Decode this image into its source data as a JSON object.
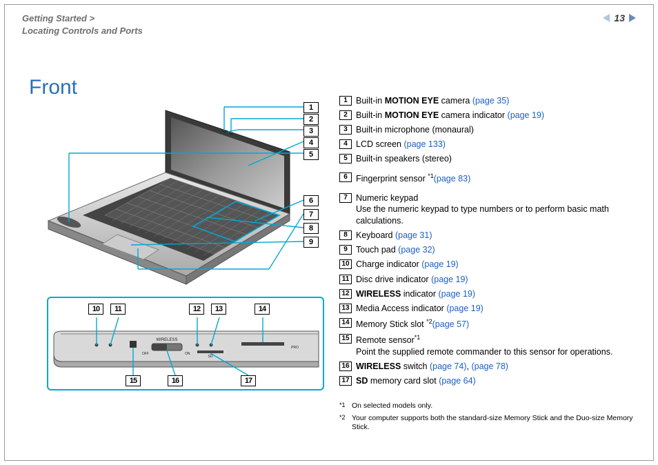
{
  "header": {
    "breadcrumb_line1": "Getting Started >",
    "breadcrumb_line2": "Locating Controls and Ports",
    "page_number": "13"
  },
  "title": "Front",
  "colors": {
    "accent": "#00a8d6",
    "link": "#1a5fc4",
    "title": "#2b6fb5",
    "breadcrumb": "#6e6e6e",
    "nav_left": "#b3c8dc",
    "nav_right": "#6b8db5"
  },
  "diagram": {
    "top_callouts": [
      "1",
      "2",
      "3",
      "4",
      "5"
    ],
    "mid_callouts": [
      "6",
      "7",
      "8",
      "9"
    ],
    "panel_top_callouts": [
      "10",
      "11",
      "12",
      "13",
      "14"
    ],
    "panel_bottom_callouts": [
      "15",
      "16",
      "17"
    ],
    "panel_labels": {
      "wireless": "WIRELESS",
      "off": "OFF",
      "on": "ON",
      "sd": "SD",
      "pro": "PRO"
    }
  },
  "legend": [
    {
      "num": "1",
      "pre": "Built-in ",
      "bold": "MOTION EYE",
      "post": " camera ",
      "link": "(page 35)"
    },
    {
      "num": "2",
      "pre": "Built-in ",
      "bold": "MOTION EYE",
      "post": " camera indicator ",
      "link": "(page 19)"
    },
    {
      "num": "3",
      "pre": "Built-in microphone (monaural)"
    },
    {
      "num": "4",
      "pre": "LCD screen ",
      "link": "(page 133)"
    },
    {
      "num": "5",
      "pre": "Built-in speakers (stereo)"
    },
    {
      "num": "6",
      "pre": "Fingerprint sensor",
      "sup": "*1",
      "post": " ",
      "link": "(page 83)"
    },
    {
      "num": "7",
      "pre": "Numeric keypad",
      "desc": "Use the numeric keypad to type numbers or to perform basic math calculations."
    },
    {
      "num": "8",
      "pre": "Keyboard ",
      "link": "(page 31)"
    },
    {
      "num": "9",
      "pre": "Touch pad ",
      "link": "(page 32)"
    },
    {
      "num": "10",
      "pre": "Charge indicator ",
      "link": "(page 19)"
    },
    {
      "num": "11",
      "pre": "Disc drive indicator ",
      "link": "(page 19)"
    },
    {
      "num": "12",
      "bold": "WIRELESS",
      "post": " indicator ",
      "link": "(page 19)"
    },
    {
      "num": "13",
      "pre": "Media Access indicator ",
      "link": "(page 19)"
    },
    {
      "num": "14",
      "pre": "Memory Stick slot",
      "sup": "*2",
      "post": " ",
      "link": "(page 57)"
    },
    {
      "num": "15",
      "pre": "Remote sensor",
      "sup": "*1",
      "desc": "Point the supplied remote commander to this sensor for operations."
    },
    {
      "num": "16",
      "bold": "WIRELESS",
      "post": " switch ",
      "link": "(page 74)",
      "link2": "(page 78)"
    },
    {
      "num": "17",
      "bold": "SD",
      "post": " memory card slot ",
      "link": "(page 64)"
    }
  ],
  "footnotes": [
    {
      "mark": "*1",
      "text": "On selected models only."
    },
    {
      "mark": "*2",
      "text": "Your computer supports both the standard-size Memory Stick and the Duo-size Memory Stick."
    }
  ]
}
